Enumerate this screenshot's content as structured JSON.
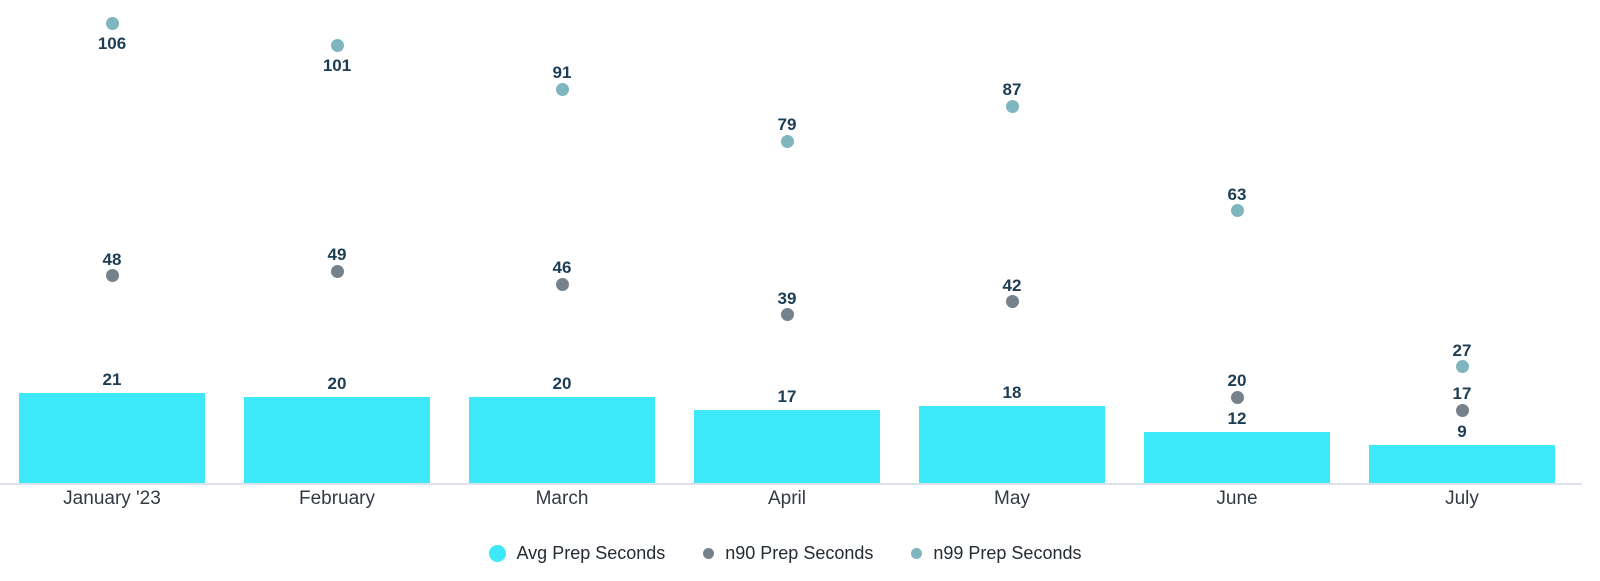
{
  "chart_data": {
    "type": "bar",
    "title": "",
    "xlabel": "",
    "ylabel": "",
    "categories": [
      "January '23",
      "February",
      "March",
      "April",
      "May",
      "June",
      "July"
    ],
    "series": [
      {
        "name": "Avg Prep Seconds",
        "render": "bar",
        "color": "#3DE8F9",
        "values": [
          21,
          20,
          20,
          17,
          18,
          12,
          9
        ]
      },
      {
        "name": "n90 Prep Seconds",
        "render": "scatter",
        "color": "#75828C",
        "values": [
          48,
          49,
          46,
          39,
          42,
          20,
          17
        ]
      },
      {
        "name": "n99 Prep Seconds",
        "render": "scatter",
        "color": "#7FB5BE",
        "values": [
          106,
          101,
          91,
          79,
          87,
          63,
          27
        ]
      }
    ],
    "ylim": [
      0,
      110
    ],
    "grid": false,
    "y_axis_shown": false,
    "legend_position": "bottom",
    "data_labels_shown": true,
    "colors": {
      "data_label": "#1D3D54",
      "category_label": "#333A43",
      "legend_text": "#242B33",
      "axis_line": "#DCE1EA",
      "background": "#FFFFFF"
    }
  }
}
